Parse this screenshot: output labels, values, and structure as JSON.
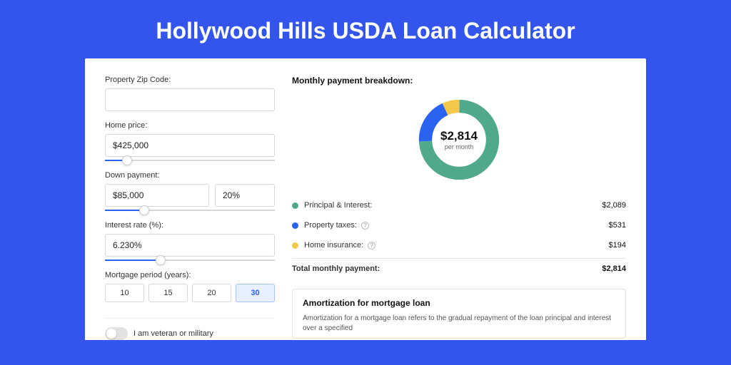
{
  "title": "Hollywood Hills USDA Loan Calculator",
  "form": {
    "zip": {
      "label": "Property Zip Code:",
      "value": ""
    },
    "home_price": {
      "label": "Home price:",
      "value": "$425,000",
      "slider_pct": 10
    },
    "down_payment": {
      "label": "Down payment:",
      "amount": "$85,000",
      "percent": "20%",
      "slider_pct": 20
    },
    "interest": {
      "label": "Interest rate (%):",
      "value": "6.230%",
      "slider_pct": 30
    },
    "period": {
      "label": "Mortgage period (years):",
      "options": [
        "10",
        "15",
        "20",
        "30"
      ],
      "selected_index": 3
    },
    "veteran": {
      "label": "I am veteran or military",
      "on": false
    }
  },
  "breakdown": {
    "title": "Monthly payment breakdown:",
    "center_amount": "$2,814",
    "center_sub": "per month",
    "donut": {
      "segments": [
        {
          "color": "#50a98b",
          "pct": 74.2
        },
        {
          "color": "#2b62f0",
          "pct": 18.9
        },
        {
          "color": "#f4c94b",
          "pct": 6.9
        }
      ],
      "thickness": 18
    },
    "items": [
      {
        "label": "Principal & Interest:",
        "value": "$2,089",
        "color": "#50a98b",
        "info": false
      },
      {
        "label": "Property taxes:",
        "value": "$531",
        "color": "#2b62f0",
        "info": true
      },
      {
        "label": "Home insurance:",
        "value": "$194",
        "color": "#f4c94b",
        "info": true
      }
    ],
    "total_label": "Total monthly payment:",
    "total_value": "$2,814"
  },
  "amortization": {
    "title": "Amortization for mortgage loan",
    "text": "Amortization for a mortgage loan refers to the gradual repayment of the loan principal and interest over a specified"
  }
}
